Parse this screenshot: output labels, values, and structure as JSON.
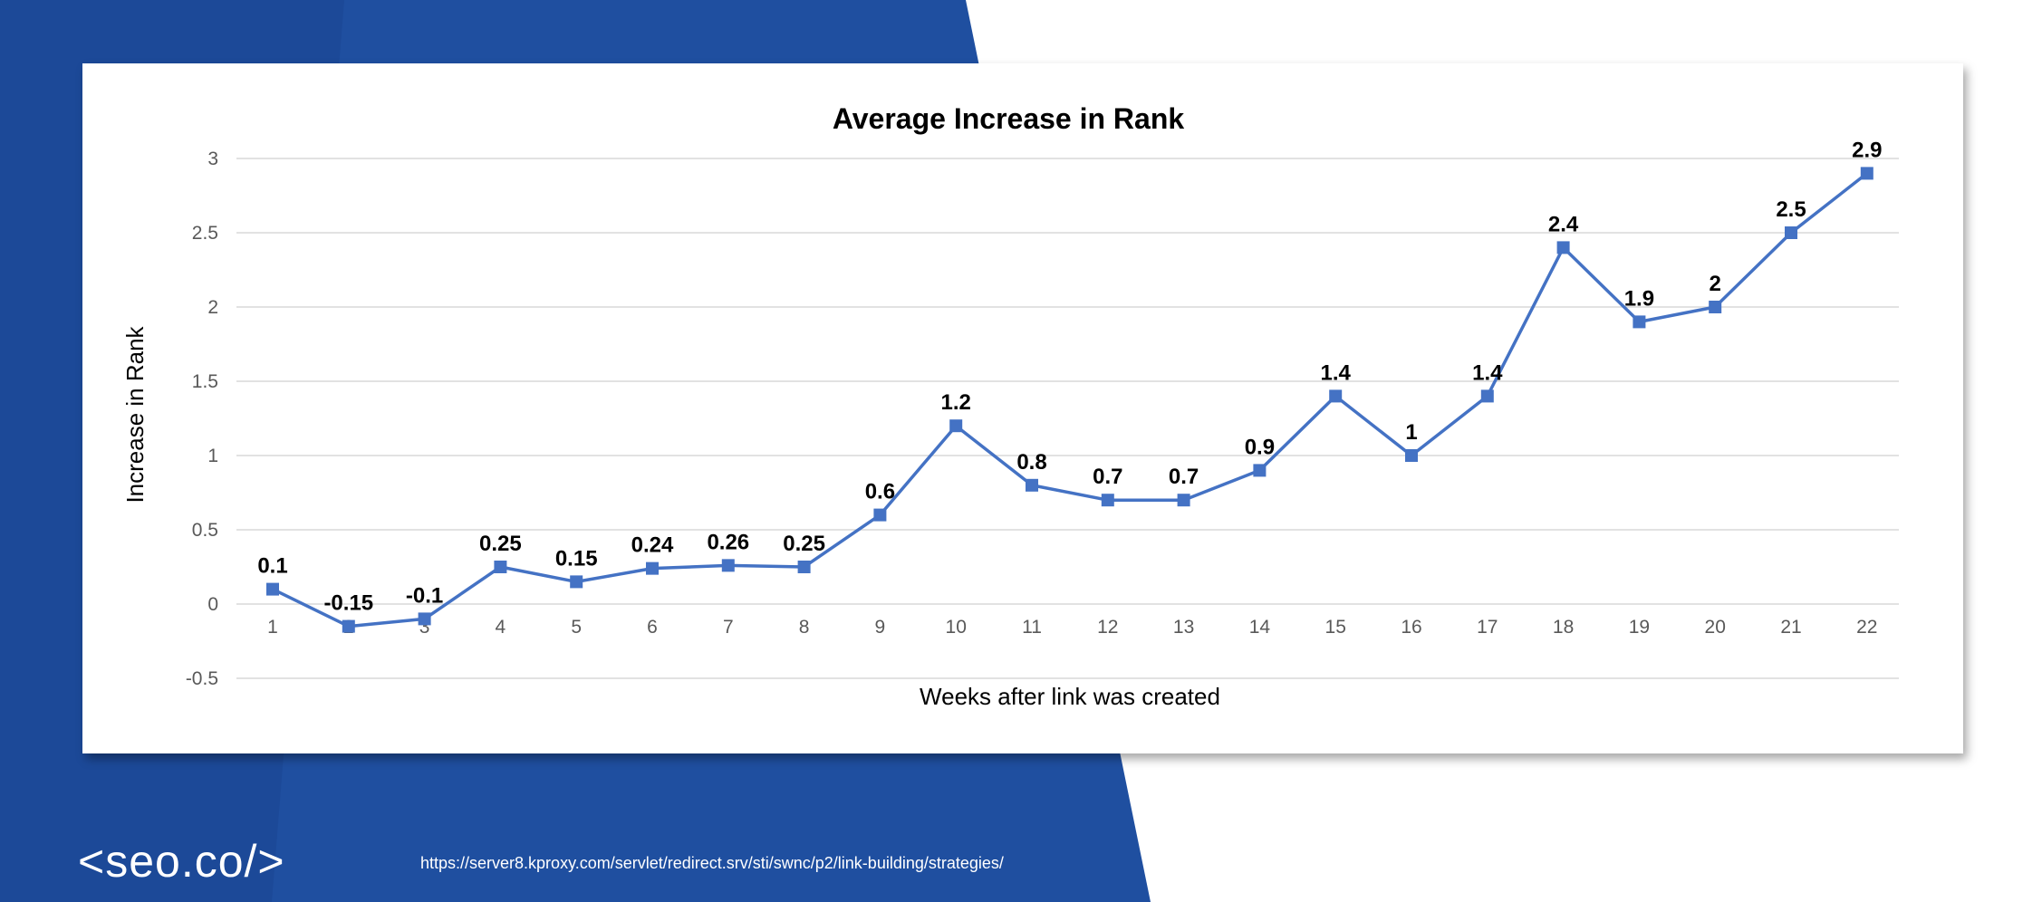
{
  "brand": {
    "logo_text": "<seo.co/>",
    "source_url": "https://server8.kproxy.com/servlet/redirect.srv/sti/swnc/p2/link-building/strategies/",
    "background_color": "#1f4fa0",
    "accent_color": "#2355b0"
  },
  "chart_data": {
    "type": "line",
    "title": "Average Increase in Rank",
    "xlabel": "Weeks after link was created",
    "ylabel": "Increase in Rank",
    "categories": [
      "1",
      "2",
      "3",
      "4",
      "5",
      "6",
      "7",
      "8",
      "9",
      "10",
      "11",
      "12",
      "13",
      "14",
      "15",
      "16",
      "17",
      "18",
      "19",
      "20",
      "21",
      "22"
    ],
    "series": [
      {
        "name": "Average Increase in Rank",
        "color": "#4472c4",
        "values": [
          0.1,
          -0.15,
          -0.1,
          0.25,
          0.15,
          0.24,
          0.26,
          0.25,
          0.6,
          1.2,
          0.8,
          0.7,
          0.7,
          0.9,
          1.4,
          1,
          1.4,
          2.4,
          1.9,
          2,
          2.5,
          2.9
        ],
        "labels": [
          "0.1",
          "-0.15",
          "-0.1",
          "0.25",
          "0.15",
          "0.24",
          "0.26",
          "0.25",
          "0.6",
          "1.2",
          "0.8",
          "0.7",
          "0.7",
          "0.9",
          "1.4",
          "1",
          "1.4",
          "2.4",
          "1.9",
          "2",
          "2.5",
          "2.9"
        ]
      }
    ],
    "y_ticks": [
      "-0.5",
      "0",
      "0.5",
      "1",
      "1.5",
      "2",
      "2.5",
      "3"
    ],
    "ylim": [
      -0.5,
      3
    ],
    "grid": true,
    "legend": "none"
  }
}
